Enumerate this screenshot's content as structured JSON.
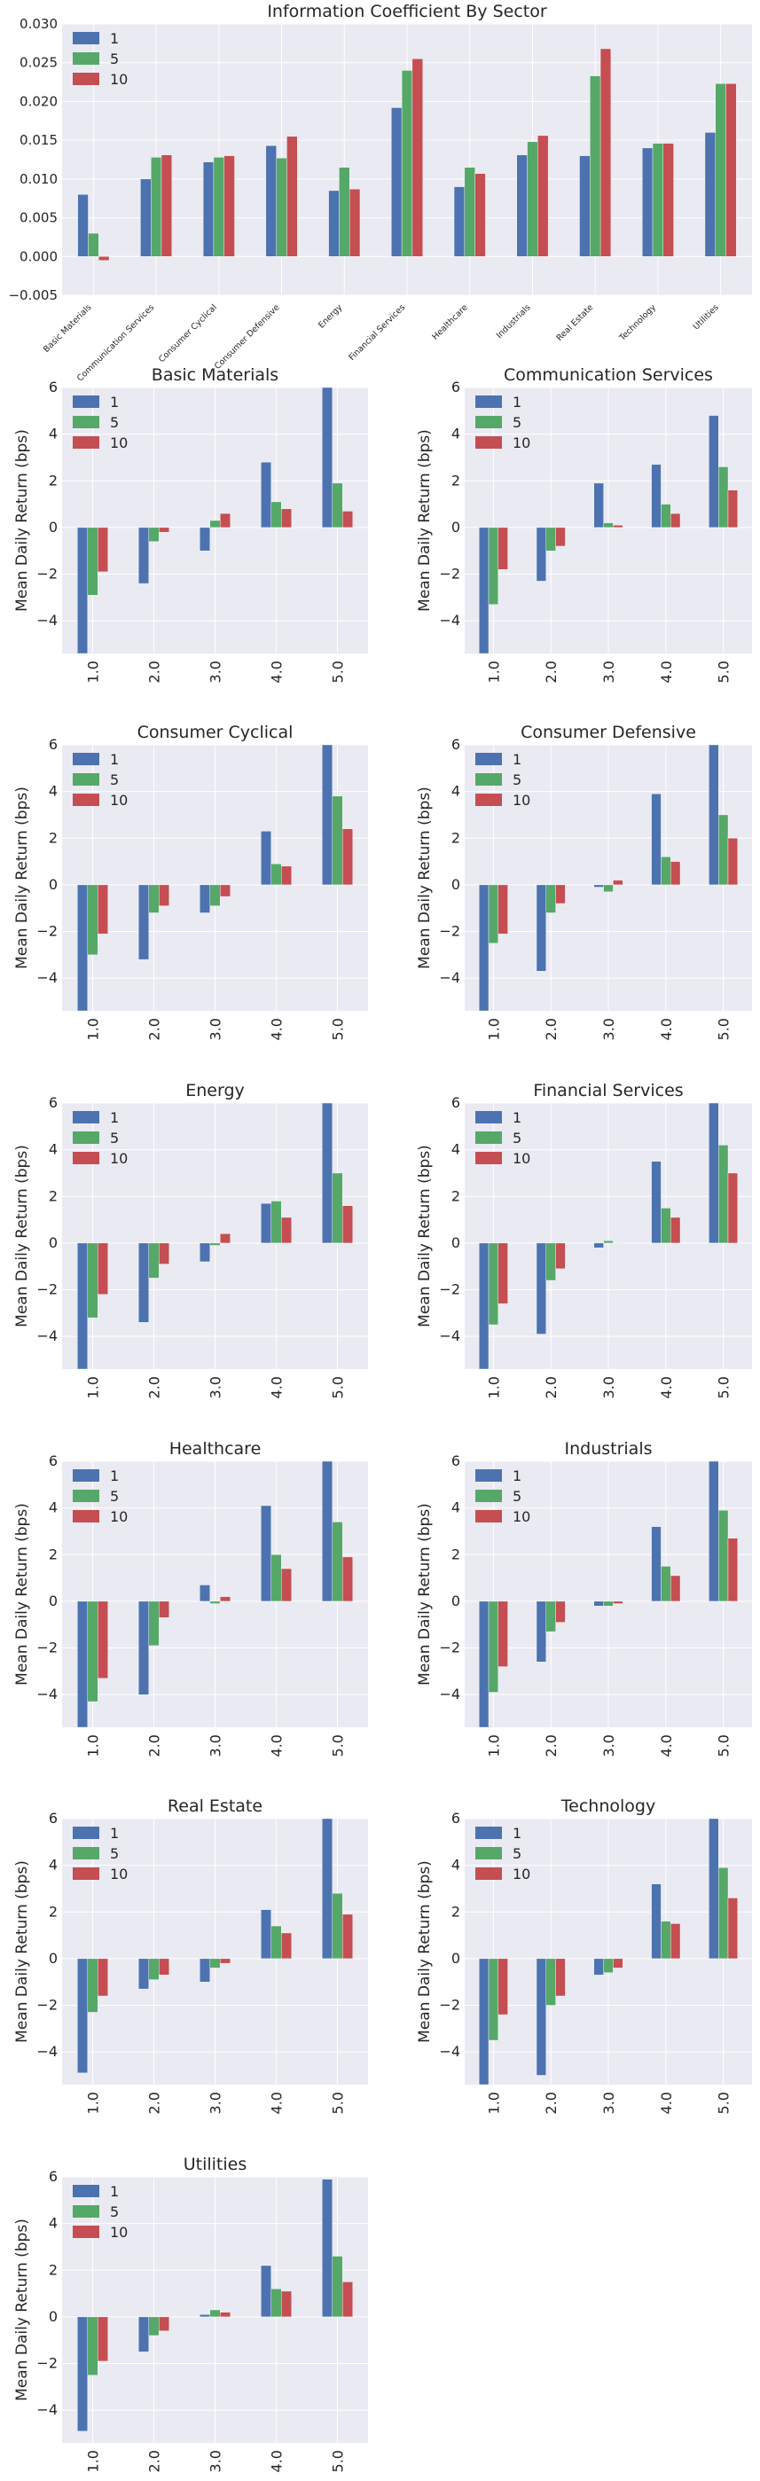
{
  "legend_labels": [
    "1",
    "5",
    "10"
  ],
  "colors": [
    "#4c72b0",
    "#55a868",
    "#c44e52"
  ],
  "chart_data": [
    {
      "type": "bar",
      "title": "Information Coefficient By Sector",
      "xlabel": "",
      "ylabel": "",
      "categories": [
        "Basic Materials",
        "Communication Services",
        "Consumer Cyclical",
        "Consumer Defensive",
        "Energy",
        "Financial Services",
        "Healthcare",
        "Industrials",
        "Real Estate",
        "Technology",
        "Utilities"
      ],
      "ylim": [
        -0.005,
        0.03
      ],
      "yticks": [
        -0.005,
        0.0,
        0.005,
        0.01,
        0.015,
        0.02,
        0.025,
        0.03
      ],
      "ytick_labels": [
        "−0.005",
        "0.000",
        "0.005",
        "0.010",
        "0.015",
        "0.020",
        "0.025",
        "0.030"
      ],
      "legend": "top-left",
      "grid": true,
      "series": [
        {
          "name": "1",
          "values": [
            0.008,
            0.01,
            0.0122,
            0.0143,
            0.0085,
            0.0192,
            0.009,
            0.0131,
            0.013,
            0.014,
            0.016
          ]
        },
        {
          "name": "5",
          "values": [
            0.003,
            0.0128,
            0.0128,
            0.0127,
            0.0115,
            0.024,
            0.0115,
            0.0148,
            0.0233,
            0.0146,
            0.0223
          ]
        },
        {
          "name": "10",
          "values": [
            -0.0005,
            0.0131,
            0.013,
            0.0155,
            0.0087,
            0.0255,
            0.0107,
            0.0156,
            0.0268,
            0.0146,
            0.0223
          ]
        }
      ]
    },
    {
      "type": "bar",
      "title": "Basic Materials",
      "ylabel": "Mean Daily Return (bps)",
      "categories": [
        "1.0",
        "2.0",
        "3.0",
        "4.0",
        "5.0"
      ],
      "ylim": [
        -5.4,
        6.0
      ],
      "yticks": [
        -4,
        -2,
        0,
        2,
        4,
        6
      ],
      "ytick_labels": [
        "−4",
        "−2",
        "0",
        "2",
        "4",
        "6"
      ],
      "legend": "top-left",
      "grid": true,
      "series": [
        {
          "name": "1",
          "values": [
            -5.4,
            -2.4,
            -1.0,
            2.8,
            6.0
          ]
        },
        {
          "name": "5",
          "values": [
            -2.9,
            -0.6,
            0.3,
            1.1,
            1.9
          ]
        },
        {
          "name": "10",
          "values": [
            -1.9,
            -0.2,
            0.6,
            0.8,
            0.7
          ]
        }
      ]
    },
    {
      "type": "bar",
      "title": "Communication Services",
      "ylabel": "Mean Daily Return (bps)",
      "categories": [
        "1.0",
        "2.0",
        "3.0",
        "4.0",
        "5.0"
      ],
      "ylim": [
        -5.4,
        6.0
      ],
      "yticks": [
        -4,
        -2,
        0,
        2,
        4,
        6
      ],
      "ytick_labels": [
        "−4",
        "−2",
        "0",
        "2",
        "4",
        "6"
      ],
      "legend": "top-left",
      "grid": true,
      "series": [
        {
          "name": "1",
          "values": [
            -5.4,
            -2.3,
            1.9,
            2.7,
            4.8
          ]
        },
        {
          "name": "5",
          "values": [
            -3.3,
            -1.0,
            0.2,
            1.0,
            2.6
          ]
        },
        {
          "name": "10",
          "values": [
            -1.8,
            -0.8,
            0.1,
            0.6,
            1.6
          ]
        }
      ]
    },
    {
      "type": "bar",
      "title": "Consumer Cyclical",
      "ylabel": "Mean Daily Return (bps)",
      "categories": [
        "1.0",
        "2.0",
        "3.0",
        "4.0",
        "5.0"
      ],
      "ylim": [
        -5.4,
        6.0
      ],
      "yticks": [
        -4,
        -2,
        0,
        2,
        4,
        6
      ],
      "ytick_labels": [
        "−4",
        "−2",
        "0",
        "2",
        "4",
        "6"
      ],
      "legend": "top-left",
      "grid": true,
      "series": [
        {
          "name": "1",
          "values": [
            -5.4,
            -3.2,
            -1.2,
            2.3,
            6.0
          ]
        },
        {
          "name": "5",
          "values": [
            -3.0,
            -1.2,
            -0.9,
            0.9,
            3.8
          ]
        },
        {
          "name": "10",
          "values": [
            -2.1,
            -0.9,
            -0.5,
            0.8,
            2.4
          ]
        }
      ]
    },
    {
      "type": "bar",
      "title": "Consumer Defensive",
      "ylabel": "Mean Daily Return (bps)",
      "categories": [
        "1.0",
        "2.0",
        "3.0",
        "4.0",
        "5.0"
      ],
      "ylim": [
        -5.4,
        6.0
      ],
      "yticks": [
        -4,
        -2,
        0,
        2,
        4,
        6
      ],
      "ytick_labels": [
        "−4",
        "−2",
        "0",
        "2",
        "4",
        "6"
      ],
      "legend": "top-left",
      "grid": true,
      "series": [
        {
          "name": "1",
          "values": [
            -5.4,
            -3.7,
            -0.1,
            3.9,
            6.0
          ]
        },
        {
          "name": "5",
          "values": [
            -2.5,
            -1.2,
            -0.3,
            1.2,
            3.0
          ]
        },
        {
          "name": "10",
          "values": [
            -2.1,
            -0.8,
            0.2,
            1.0,
            2.0
          ]
        }
      ]
    },
    {
      "type": "bar",
      "title": "Energy",
      "ylabel": "Mean Daily Return (bps)",
      "categories": [
        "1.0",
        "2.0",
        "3.0",
        "4.0",
        "5.0"
      ],
      "ylim": [
        -5.4,
        6.0
      ],
      "yticks": [
        -4,
        -2,
        0,
        2,
        4,
        6
      ],
      "ytick_labels": [
        "−4",
        "−2",
        "0",
        "2",
        "4",
        "6"
      ],
      "legend": "top-left",
      "grid": true,
      "series": [
        {
          "name": "1",
          "values": [
            -5.4,
            -3.4,
            -0.8,
            1.7,
            6.0
          ]
        },
        {
          "name": "5",
          "values": [
            -3.2,
            -1.5,
            -0.1,
            1.8,
            3.0
          ]
        },
        {
          "name": "10",
          "values": [
            -2.2,
            -0.9,
            0.4,
            1.1,
            1.6
          ]
        }
      ]
    },
    {
      "type": "bar",
      "title": "Financial Services",
      "ylabel": "Mean Daily Return (bps)",
      "categories": [
        "1.0",
        "2.0",
        "3.0",
        "4.0",
        "5.0"
      ],
      "ylim": [
        -5.4,
        6.0
      ],
      "yticks": [
        -4,
        -2,
        0,
        2,
        4,
        6
      ],
      "ytick_labels": [
        "−4",
        "−2",
        "0",
        "2",
        "4",
        "6"
      ],
      "legend": "top-left",
      "grid": true,
      "series": [
        {
          "name": "1",
          "values": [
            -5.4,
            -3.9,
            -0.2,
            3.5,
            6.0
          ]
        },
        {
          "name": "5",
          "values": [
            -3.5,
            -1.6,
            0.1,
            1.5,
            4.2
          ]
        },
        {
          "name": "10",
          "values": [
            -2.6,
            -1.1,
            0.0,
            1.1,
            3.0
          ]
        }
      ]
    },
    {
      "type": "bar",
      "title": "Healthcare",
      "ylabel": "Mean Daily Return (bps)",
      "categories": [
        "1.0",
        "2.0",
        "3.0",
        "4.0",
        "5.0"
      ],
      "ylim": [
        -5.4,
        6.0
      ],
      "yticks": [
        -4,
        -2,
        0,
        2,
        4,
        6
      ],
      "ytick_labels": [
        "−4",
        "−2",
        "0",
        "2",
        "4",
        "6"
      ],
      "legend": "top-left",
      "grid": true,
      "series": [
        {
          "name": "1",
          "values": [
            -5.4,
            -4.0,
            0.7,
            4.1,
            6.0
          ]
        },
        {
          "name": "5",
          "values": [
            -4.3,
            -1.9,
            -0.1,
            2.0,
            3.4
          ]
        },
        {
          "name": "10",
          "values": [
            -3.3,
            -0.7,
            0.2,
            1.4,
            1.9
          ]
        }
      ]
    },
    {
      "type": "bar",
      "title": "Industrials",
      "ylabel": "Mean Daily Return (bps)",
      "categories": [
        "1.0",
        "2.0",
        "3.0",
        "4.0",
        "5.0"
      ],
      "ylim": [
        -5.4,
        6.0
      ],
      "yticks": [
        -4,
        -2,
        0,
        2,
        4,
        6
      ],
      "ytick_labels": [
        "−4",
        "−2",
        "0",
        "2",
        "4",
        "6"
      ],
      "legend": "top-left",
      "grid": true,
      "series": [
        {
          "name": "1",
          "values": [
            -5.4,
            -2.6,
            -0.2,
            3.2,
            6.0
          ]
        },
        {
          "name": "5",
          "values": [
            -3.9,
            -1.3,
            -0.2,
            1.5,
            3.9
          ]
        },
        {
          "name": "10",
          "values": [
            -2.8,
            -0.9,
            -0.1,
            1.1,
            2.7
          ]
        }
      ]
    },
    {
      "type": "bar",
      "title": "Real Estate",
      "ylabel": "Mean Daily Return (bps)",
      "categories": [
        "1.0",
        "2.0",
        "3.0",
        "4.0",
        "5.0"
      ],
      "ylim": [
        -5.4,
        6.0
      ],
      "yticks": [
        -4,
        -2,
        0,
        2,
        4,
        6
      ],
      "ytick_labels": [
        "−4",
        "−2",
        "0",
        "2",
        "4",
        "6"
      ],
      "legend": "top-left",
      "grid": true,
      "series": [
        {
          "name": "1",
          "values": [
            -4.9,
            -1.3,
            -1.0,
            2.1,
            6.0
          ]
        },
        {
          "name": "5",
          "values": [
            -2.3,
            -0.9,
            -0.4,
            1.4,
            2.8
          ]
        },
        {
          "name": "10",
          "values": [
            -1.6,
            -0.7,
            -0.2,
            1.1,
            1.9
          ]
        }
      ]
    },
    {
      "type": "bar",
      "title": "Technology",
      "ylabel": "Mean Daily Return (bps)",
      "categories": [
        "1.0",
        "2.0",
        "3.0",
        "4.0",
        "5.0"
      ],
      "ylim": [
        -5.4,
        6.0
      ],
      "yticks": [
        -4,
        -2,
        0,
        2,
        4,
        6
      ],
      "ytick_labels": [
        "−4",
        "−2",
        "0",
        "2",
        "4",
        "6"
      ],
      "legend": "top-left",
      "grid": true,
      "series": [
        {
          "name": "1",
          "values": [
            -5.4,
            -5.0,
            -0.7,
            3.2,
            6.0
          ]
        },
        {
          "name": "5",
          "values": [
            -3.5,
            -2.0,
            -0.6,
            1.6,
            3.9
          ]
        },
        {
          "name": "10",
          "values": [
            -2.4,
            -1.6,
            -0.4,
            1.5,
            2.6
          ]
        }
      ]
    },
    {
      "type": "bar",
      "title": "Utilities",
      "ylabel": "Mean Daily Return (bps)",
      "categories": [
        "1.0",
        "2.0",
        "3.0",
        "4.0",
        "5.0"
      ],
      "ylim": [
        -5.4,
        6.0
      ],
      "yticks": [
        -4,
        -2,
        0,
        2,
        4,
        6
      ],
      "ytick_labels": [
        "−4",
        "−2",
        "0",
        "2",
        "4",
        "6"
      ],
      "legend": "top-left",
      "grid": true,
      "series": [
        {
          "name": "1",
          "values": [
            -4.9,
            -1.5,
            0.1,
            2.2,
            5.9
          ]
        },
        {
          "name": "5",
          "values": [
            -2.5,
            -0.8,
            0.3,
            1.2,
            2.6
          ]
        },
        {
          "name": "10",
          "values": [
            -1.9,
            -0.6,
            0.2,
            1.1,
            1.5
          ]
        }
      ]
    }
  ]
}
